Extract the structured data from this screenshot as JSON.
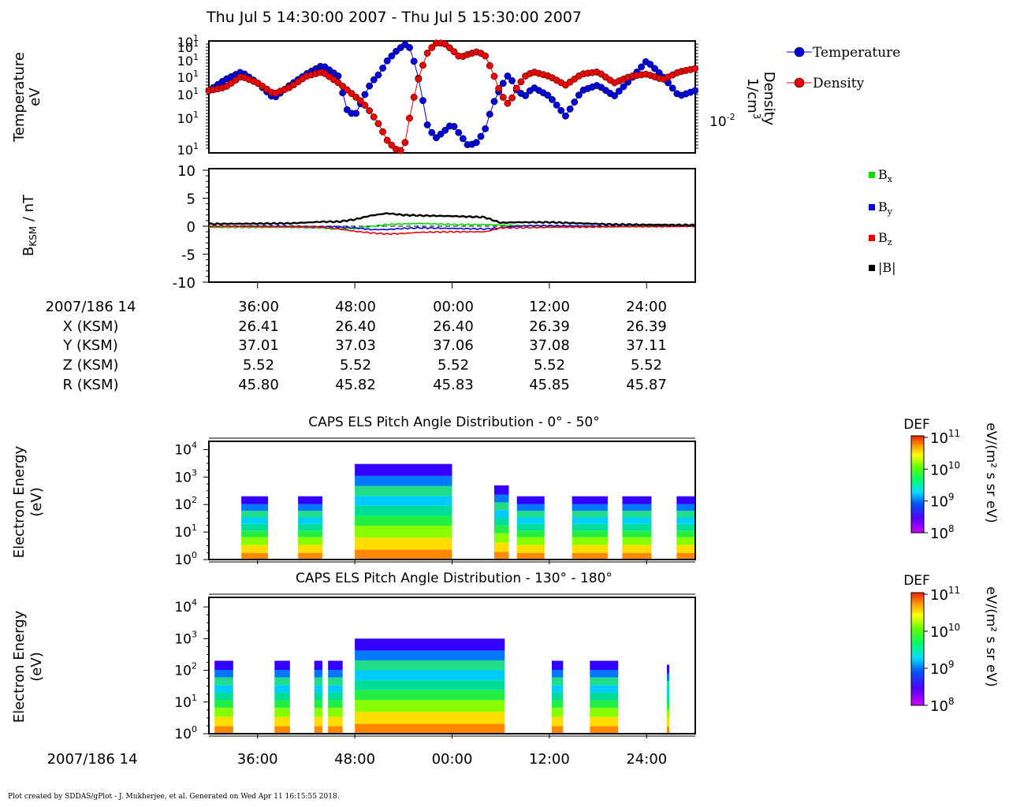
{
  "title": "Thu Jul 5 14:30:00 2007 - Thu Jul 5 15:30:00 2007",
  "footer": "Plot created by SDDAS/gPlot - J. Mukherjee, et al.  Generated on Wed Apr 11 16:15:55 2018.",
  "colors": {
    "temperature": "#0000dd",
    "density": "#ee0000",
    "bx": "#00dd00",
    "by": "#0000ee",
    "bz": "#ee0000",
    "bmag": "#000000"
  },
  "panel1": {
    "ylabel_left": [
      "Temperature",
      "eV"
    ],
    "ylabel_right": [
      "Density",
      "1/cm"
    ],
    "ylabel_right_sup": "3",
    "left_ticks": [
      "10",
      "10",
      "10",
      "10",
      "10",
      "10",
      "10"
    ],
    "left_ticks_sup": [
      "1",
      "1",
      "1",
      "1",
      "1",
      "1",
      "1"
    ],
    "right_tick": "10",
    "right_tick_sup": "-2",
    "legend": [
      {
        "name": "Temperature",
        "color": "#0000dd"
      },
      {
        "name": "Density",
        "color": "#ee0000"
      }
    ]
  },
  "panel2": {
    "ylabel": "B",
    "ylabel_sub": "KSM",
    "ylabel_unit": " / nT",
    "yticks": [
      "10",
      "5",
      "0",
      "-5",
      "-10"
    ],
    "legend": [
      {
        "name": "B",
        "sub": "x",
        "color": "#00dd00"
      },
      {
        "name": "B",
        "sub": "y",
        "color": "#0000ee"
      },
      {
        "name": "B",
        "sub": "z",
        "color": "#ee0000"
      },
      {
        "name": "|B|",
        "sub": "",
        "color": "#000000"
      }
    ]
  },
  "ephemeris": {
    "labels": [
      "2007/186 14",
      "X (KSM)",
      "Y (KSM)",
      "Z (KSM)",
      "R (KSM)"
    ],
    "times": [
      "36:00",
      "48:00",
      "00:00",
      "12:00",
      "24:00"
    ],
    "x": [
      "26.41",
      "26.40",
      "26.40",
      "26.39",
      "26.39"
    ],
    "y": [
      "37.01",
      "37.03",
      "37.06",
      "37.08",
      "37.11"
    ],
    "z": [
      "5.52",
      "5.52",
      "5.52",
      "5.52",
      "5.52"
    ],
    "r": [
      "45.80",
      "45.82",
      "45.83",
      "45.85",
      "45.87"
    ]
  },
  "spec1": {
    "title": "CAPS ELS Pitch Angle Distribution - 0° - 50°",
    "ylabel": [
      "Electron Energy",
      "(eV)"
    ],
    "yticks_base": [
      "10",
      "10",
      "10",
      "10",
      "10"
    ],
    "yticks_sup": [
      "4",
      "3",
      "2",
      "1",
      "0"
    ],
    "cbar_title": "DEF",
    "cbar_unit": "eV/(m² s sr eV)",
    "cbar_ticks_base": [
      "10",
      "10",
      "10",
      "10"
    ],
    "cbar_ticks_sup": [
      "11",
      "10",
      "9",
      "8"
    ]
  },
  "spec2": {
    "title": "CAPS ELS Pitch Angle Distribution - 130° - 180°",
    "ylabel": [
      "Electron Energy",
      "(eV)"
    ],
    "yticks_base": [
      "10",
      "10",
      "10",
      "10",
      "10"
    ],
    "yticks_sup": [
      "4",
      "3",
      "2",
      "1",
      "0"
    ],
    "cbar_title": "DEF",
    "cbar_unit": "eV/(m² s sr eV)",
    "cbar_ticks_base": [
      "10",
      "10",
      "10",
      "10"
    ],
    "cbar_ticks_sup": [
      "11",
      "10",
      "9",
      "8"
    ]
  },
  "bottom_axis": {
    "label": "2007/186 14",
    "times": [
      "36:00",
      "48:00",
      "00:00",
      "12:00",
      "24:00"
    ]
  },
  "chart_data": [
    {
      "type": "line",
      "title": "Thu Jul 5 14:30:00 2007 - Thu Jul 5 15:30:00 2007",
      "xlabel": "",
      "ylabel": "Temperature eV",
      "y2label": "Density 1/cm3",
      "x_unit": "minutes after 14:30 UT",
      "xlim": [
        0,
        60
      ],
      "grid": false,
      "legend_position": "right",
      "series": [
        {
          "name": "Temperature",
          "x": [
            0,
            2,
            4,
            6,
            8,
            10,
            12,
            14,
            16,
            17,
            18,
            19,
            20,
            21,
            22,
            23,
            24,
            24.5,
            25,
            26,
            27,
            28,
            29,
            30,
            31,
            32,
            33,
            34,
            35,
            36,
            37,
            38,
            39,
            40,
            42,
            44,
            46,
            48,
            50,
            52,
            54,
            56,
            58,
            60
          ],
          "y": [
            0.55,
            0.65,
            0.72,
            0.62,
            0.48,
            0.6,
            0.7,
            0.78,
            0.68,
            0.38,
            0.32,
            0.48,
            0.62,
            0.7,
            0.82,
            0.9,
            0.96,
            0.98,
            0.9,
            0.62,
            0.22,
            0.12,
            0.18,
            0.25,
            0.15,
            0.05,
            0.08,
            0.18,
            0.42,
            0.58,
            0.7,
            0.55,
            0.5,
            0.58,
            0.5,
            0.32,
            0.55,
            0.6,
            0.5,
            0.65,
            0.82,
            0.68,
            0.5,
            0.55
          ]
        },
        {
          "name": "Density",
          "x": [
            0,
            2,
            4,
            6,
            8,
            10,
            12,
            14,
            16,
            18,
            19,
            20,
            21,
            22,
            23,
            24,
            25,
            26,
            27,
            28,
            29,
            30,
            31,
            32,
            33,
            34,
            35,
            36,
            37,
            38,
            39,
            40,
            42,
            44,
            46,
            48,
            50,
            52,
            54,
            56,
            58,
            60
          ],
          "y": [
            0.55,
            0.58,
            0.68,
            0.62,
            0.52,
            0.58,
            0.68,
            0.72,
            0.62,
            0.5,
            0.44,
            0.35,
            0.24,
            0.1,
            0.02,
            0.0,
            0.4,
            0.7,
            0.9,
            0.98,
            0.98,
            0.92,
            0.85,
            0.88,
            0.9,
            0.88,
            0.72,
            0.52,
            0.42,
            0.58,
            0.68,
            0.72,
            0.68,
            0.6,
            0.7,
            0.72,
            0.62,
            0.68,
            0.7,
            0.65,
            0.72,
            0.75
          ]
        }
      ]
    },
    {
      "type": "line",
      "ylabel": "BKSM / nT",
      "ylim": [
        -10,
        10
      ],
      "xlim": [
        0,
        60
      ],
      "grid": false,
      "legend_position": "right",
      "series": [
        {
          "name": "Bx",
          "x": [
            0,
            10,
            14,
            15,
            18,
            22,
            26,
            28,
            30,
            34,
            36,
            38,
            42,
            50,
            60
          ],
          "y": [
            -0.2,
            -0.2,
            -0.3,
            -0.5,
            -0.4,
            0.3,
            0.5,
            0.4,
            0.3,
            0.3,
            0.2,
            0.1,
            0.0,
            -0.1,
            0.0
          ]
        },
        {
          "name": "By",
          "x": [
            0,
            10,
            15,
            18,
            20,
            22,
            24,
            26,
            30,
            34,
            36,
            38,
            40,
            50,
            60
          ],
          "y": [
            0.0,
            0.0,
            -0.1,
            -0.3,
            -0.6,
            -0.6,
            -0.4,
            -0.3,
            -0.4,
            -0.5,
            -0.3,
            0.0,
            0.1,
            0.0,
            0.0
          ]
        },
        {
          "name": "Bz",
          "x": [
            0,
            10,
            14,
            16,
            18,
            20,
            22,
            24,
            26,
            30,
            34,
            35,
            36,
            38,
            42,
            50,
            60
          ],
          "y": [
            0.0,
            -0.1,
            -0.2,
            -0.5,
            -0.9,
            -1.2,
            -1.4,
            -1.3,
            -1.1,
            -1.0,
            -1.0,
            -0.7,
            -0.3,
            -0.3,
            -0.2,
            -0.1,
            0.0
          ]
        },
        {
          "name": "|B|",
          "x": [
            0,
            10,
            14,
            16,
            18,
            20,
            22,
            24,
            26,
            30,
            34,
            36,
            38,
            42,
            50,
            60
          ],
          "y": [
            0.4,
            0.5,
            0.8,
            0.8,
            1.2,
            1.9,
            2.3,
            2.0,
            1.9,
            1.8,
            1.6,
            0.6,
            0.7,
            0.7,
            0.3,
            0.2
          ]
        }
      ]
    },
    {
      "type": "heatmap",
      "title": "CAPS ELS Pitch Angle Distribution - 0° - 50°",
      "ylabel": "Electron Energy (eV)",
      "yscale": "log",
      "ylim": [
        1,
        20000
      ],
      "zlabel": "DEF eV/(m² s sr eV)",
      "zlim": [
        100000000.0,
        100000000000.0
      ],
      "blocks": [
        {
          "x": [
            4,
            7.3
          ],
          "emax": 200
        },
        {
          "x": [
            11,
            14
          ],
          "emax": 200
        },
        {
          "x": [
            18,
            30
          ],
          "emax": 3000
        },
        {
          "x": [
            35.2,
            37
          ],
          "emax": 500
        },
        {
          "x": [
            38,
            41.4
          ],
          "emax": 200
        },
        {
          "x": [
            44.8,
            49.2
          ],
          "emax": 200
        },
        {
          "x": [
            51,
            54.6
          ],
          "emax": 200
        },
        {
          "x": [
            57.7,
            60
          ],
          "emax": 200
        }
      ]
    },
    {
      "type": "heatmap",
      "title": "CAPS ELS Pitch Angle Distribution - 130° - 180°",
      "ylabel": "Electron Energy (eV)",
      "yscale": "log",
      "ylim": [
        1,
        20000
      ],
      "zlabel": "DEF eV/(m² s sr eV)",
      "zlim": [
        100000000.0,
        100000000000.0
      ],
      "blocks": [
        {
          "x": [
            0.7,
            3
          ],
          "emax": 200
        },
        {
          "x": [
            8.1,
            10
          ],
          "emax": 200
        },
        {
          "x": [
            13,
            14
          ],
          "emax": 200
        },
        {
          "x": [
            14.7,
            16.5
          ],
          "emax": 200
        },
        {
          "x": [
            18,
            36.5
          ],
          "emax": 1000
        },
        {
          "x": [
            42.3,
            43.7
          ],
          "emax": 200
        },
        {
          "x": [
            47,
            50.5
          ],
          "emax": 200
        },
        {
          "x": [
            56.5,
            56.8
          ],
          "emax": 150
        }
      ]
    }
  ]
}
